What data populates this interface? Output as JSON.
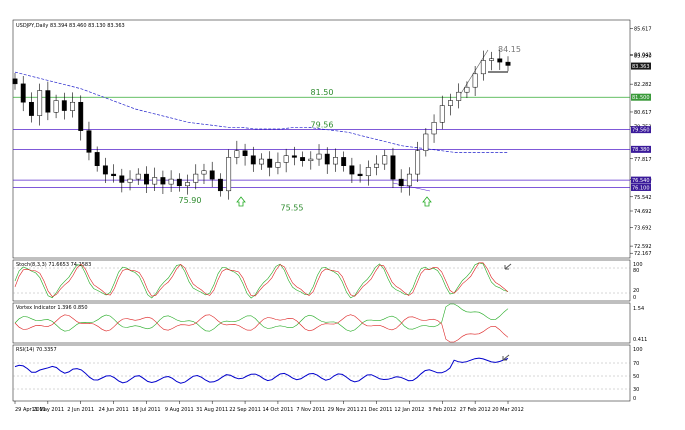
{
  "main_panel": {
    "title": "USDJPY,Daily  83.394 83.460 83.130 83.363",
    "price_axis_labels": [
      "85.617",
      "84.042",
      "83.990",
      "82.282",
      "80.617",
      "79.752",
      "77.817",
      "76.590",
      "75.542",
      "74.692",
      "73.692",
      "72.592",
      "72.167"
    ],
    "tag_labels": [
      {
        "text": "83.363",
        "color": "#1a1a1a"
      },
      {
        "text": "81.500",
        "color": "#3a9a3a"
      },
      {
        "text": "79.560",
        "color": "#3a1a9a"
      },
      {
        "text": "78.380",
        "color": "#3a1a9a"
      },
      {
        "text": "76.540",
        "color": "#3a1a9a"
      },
      {
        "text": "76.100",
        "color": "#3a1a9a"
      }
    ],
    "annotations": [
      {
        "text": "84.15",
        "color": "#777777"
      },
      {
        "text": "81.50",
        "color": "#2e8b2e"
      },
      {
        "text": "79.56",
        "color": "#2e8b2e"
      },
      {
        "text": "75.90",
        "color": "#2e8b2e"
      },
      {
        "text": "75.55",
        "color": "#2e8b2e"
      }
    ],
    "h_lines": [
      {
        "price": 81.5,
        "color": "#33aa33"
      },
      {
        "price": 79.56,
        "color": "#5522cc"
      },
      {
        "price": 78.38,
        "color": "#5522cc"
      },
      {
        "price": 76.54,
        "color": "#5522cc"
      },
      {
        "price": 76.1,
        "color": "#5522cc"
      }
    ],
    "y_range": [
      72.0,
      86.0
    ]
  },
  "stoch_panel": {
    "title": "Stoch(8,3,3) 71.6653 74.2583",
    "axis_labels": [
      "100",
      "80",
      "20",
      "0"
    ]
  },
  "vortex_panel": {
    "title": "Vortex Indicator 1.396 0.850",
    "axis_labels": [
      "1.54",
      "0.411"
    ]
  },
  "rsi_panel": {
    "title": "RSI(14) 70.3357",
    "axis_labels": [
      "100",
      "70",
      "50",
      "30",
      "0"
    ]
  },
  "dates": [
    "29 Apr 2011",
    "11 May 2011",
    "2 Jun 2011",
    "24 Jun 2011",
    "18 Jul 2011",
    "9 Aug 2011",
    "31 Aug 2011",
    "22 Sep 2011",
    "14 Oct 2011",
    "7 Nov 2011",
    "29 Nov 2011",
    "21 Dec 2011",
    "12 Jan 2012",
    "3 Feb 2012",
    "27 Feb 2012",
    "20 Mar 2012"
  ],
  "colors": {
    "candle": "#000000",
    "ma": "#2222cc",
    "stoch_main": "#22aa22",
    "stoch_signal": "#dd2222",
    "vortex_plus": "#22aa22",
    "vortex_minus": "#dd2222",
    "rsi": "#0000cc",
    "arrow": "#22aa22"
  },
  "chart_data": {
    "type": "candlestick",
    "title": "USDJPY,Daily  83.394 83.460 83.130 83.363",
    "x_labels": [
      "29 Apr 2011",
      "11 May 2011",
      "2 Jun 2011",
      "24 Jun 2011",
      "18 Jul 2011",
      "9 Aug 2011",
      "31 Aug 2011",
      "22 Sep 2011",
      "14 Oct 2011",
      "7 Nov 2011",
      "29 Nov 2011",
      "21 Dec 2011",
      "12 Jan 2012",
      "3 Feb 2012",
      "27 Feb 2012",
      "20 Mar 2012"
    ],
    "close": [
      82.3,
      81.2,
      80.4,
      81.9,
      80.6,
      81.3,
      80.7,
      81.2,
      79.5,
      78.2,
      77.4,
      76.9,
      76.8,
      76.4,
      76.6,
      76.9,
      76.3,
      76.7,
      76.3,
      76.6,
      76.2,
      76.4,
      76.9,
      77.1,
      76.6,
      75.9,
      77.9,
      78.3,
      78.0,
      77.5,
      77.8,
      77.3,
      77.6,
      78.0,
      77.9,
      77.7,
      77.8,
      78.1,
      77.5,
      77.9,
      77.4,
      76.9,
      76.8,
      77.3,
      77.5,
      78.0,
      76.6,
      76.2,
      76.9,
      78.3,
      79.3,
      80.0,
      81.0,
      81.3,
      81.8,
      82.1,
      82.9,
      83.7,
      83.8,
      83.6,
      83.4
    ],
    "moving_average": [
      83.0,
      82.8,
      82.6,
      82.4,
      82.2,
      82.0,
      81.7,
      81.4,
      81.1,
      80.8,
      80.6,
      80.4,
      80.2,
      80.0,
      79.9,
      79.8,
      79.7,
      79.7,
      79.6,
      79.6,
      79.6,
      79.7,
      79.7,
      79.6,
      79.5,
      79.4,
      79.2,
      79.0,
      78.8,
      78.6,
      78.5,
      78.4,
      78.3,
      78.2,
      78.2,
      78.2,
      78.2,
      78.2
    ],
    "levels": [
      81.5,
      79.56,
      78.38,
      76.54,
      76.1
    ],
    "annotations": [
      "84.15",
      "81.50",
      "79.56",
      "75.90",
      "75.55"
    ],
    "ylim": [
      72.0,
      86.0
    ]
  }
}
